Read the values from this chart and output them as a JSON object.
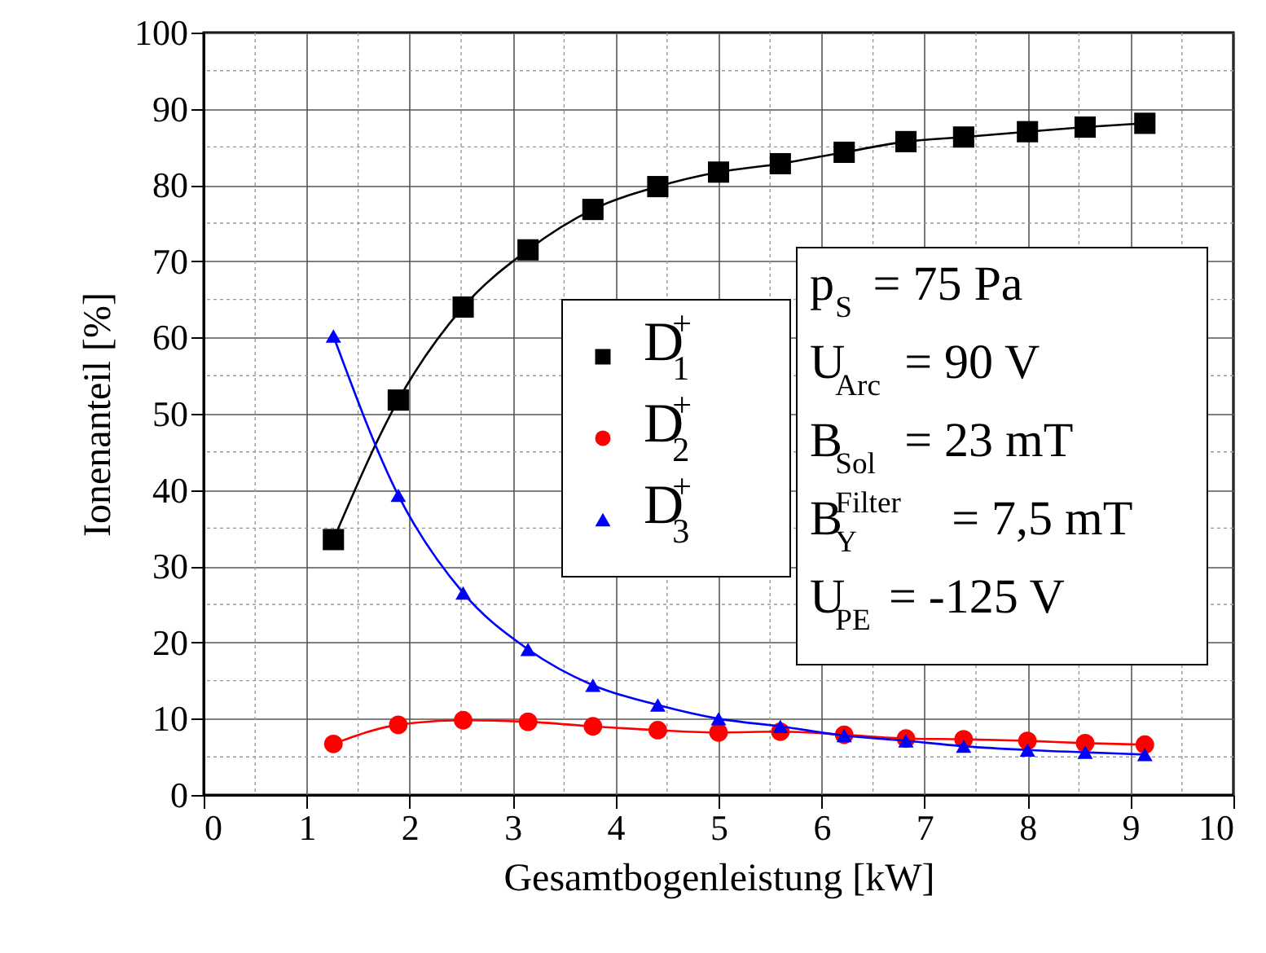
{
  "chart_data": {
    "type": "line",
    "xlabel": "Gesamtbogenleistung [kW]",
    "ylabel": "Ionenanteil [%]",
    "x": [
      1.26,
      1.89,
      2.52,
      3.15,
      3.78,
      4.41,
      5.0,
      5.6,
      6.22,
      6.82,
      7.38,
      8.0,
      8.56,
      9.14
    ],
    "series": [
      {
        "name": "D$_{1}$$^{+}$",
        "color": "#000000",
        "marker": "square",
        "values": [
          33.5,
          51.8,
          64,
          71.5,
          76.8,
          79.8,
          81.7,
          82.8,
          84.3,
          85.7,
          86.3,
          87,
          87.6,
          88.1
        ]
      },
      {
        "name": "D$_{2}$$^{+}$",
        "color": "#ff0000",
        "marker": "circle",
        "values": [
          6.7,
          9.2,
          9.8,
          9.6,
          9.0,
          8.5,
          8.2,
          8.3,
          7.9,
          7.4,
          7.3,
          7.1,
          6.8,
          6.6
        ]
      },
      {
        "name": "D$_{3}$$^{+}$",
        "color": "#0000ff",
        "marker": "triangle",
        "values": [
          60.2,
          39.3,
          26.5,
          19.1,
          14.4,
          11.8,
          10.0,
          9.0,
          7.8,
          7.1,
          6.4,
          5.9,
          5.6,
          5.3
        ]
      }
    ],
    "xlim": [
      0,
      10
    ],
    "xticks": [
      0,
      1,
      2,
      3,
      4,
      5,
      6,
      7,
      8,
      9,
      10
    ],
    "ylim": [
      0,
      100
    ],
    "yticks": [
      0,
      10,
      20,
      30,
      40,
      50,
      60,
      70,
      80,
      90,
      100
    ],
    "grid": true,
    "legend": "center",
    "line_style": "solid",
    "annotations": [
      "p$_{S}$ = 75 Pa",
      "U$_{Arc}$ = 90 V",
      "B$_{Sol}$ = 23 mT",
      "B$^{Filter}$$_{Y}$ = 7,5 mT",
      "U$_{PE}$ = -125 V"
    ]
  }
}
